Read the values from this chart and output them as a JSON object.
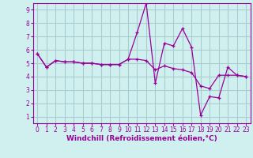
{
  "x": [
    0,
    1,
    2,
    3,
    4,
    5,
    6,
    7,
    8,
    9,
    10,
    11,
    12,
    13,
    14,
    15,
    16,
    17,
    18,
    19,
    20,
    21,
    22,
    23
  ],
  "y_line1": [
    5.7,
    4.7,
    5.2,
    5.1,
    5.1,
    5.0,
    5.0,
    4.9,
    4.9,
    4.9,
    5.3,
    7.3,
    9.5,
    3.5,
    6.5,
    6.3,
    7.6,
    6.2,
    1.1,
    2.5,
    2.4,
    4.7,
    4.1,
    4.0
  ],
  "y_line2": [
    5.7,
    4.7,
    5.2,
    5.1,
    5.1,
    5.0,
    5.0,
    4.9,
    4.9,
    4.9,
    5.3,
    5.3,
    5.2,
    4.5,
    4.8,
    4.6,
    4.5,
    4.3,
    3.3,
    3.1,
    4.1,
    4.1,
    4.1,
    4.0
  ],
  "line_color": "#990099",
  "bg_color": "#d0f0f0",
  "grid_color": "#aacccc",
  "xlabel": "Windchill (Refroidissement éolien,°C)",
  "xlim": [
    -0.5,
    23.5
  ],
  "ylim": [
    0.5,
    9.5
  ],
  "xticks": [
    0,
    1,
    2,
    3,
    4,
    5,
    6,
    7,
    8,
    9,
    10,
    11,
    12,
    13,
    14,
    15,
    16,
    17,
    18,
    19,
    20,
    21,
    22,
    23
  ],
  "yticks": [
    1,
    2,
    3,
    4,
    5,
    6,
    7,
    8,
    9
  ],
  "tick_fontsize": 5.5,
  "xlabel_fontsize": 6.5
}
